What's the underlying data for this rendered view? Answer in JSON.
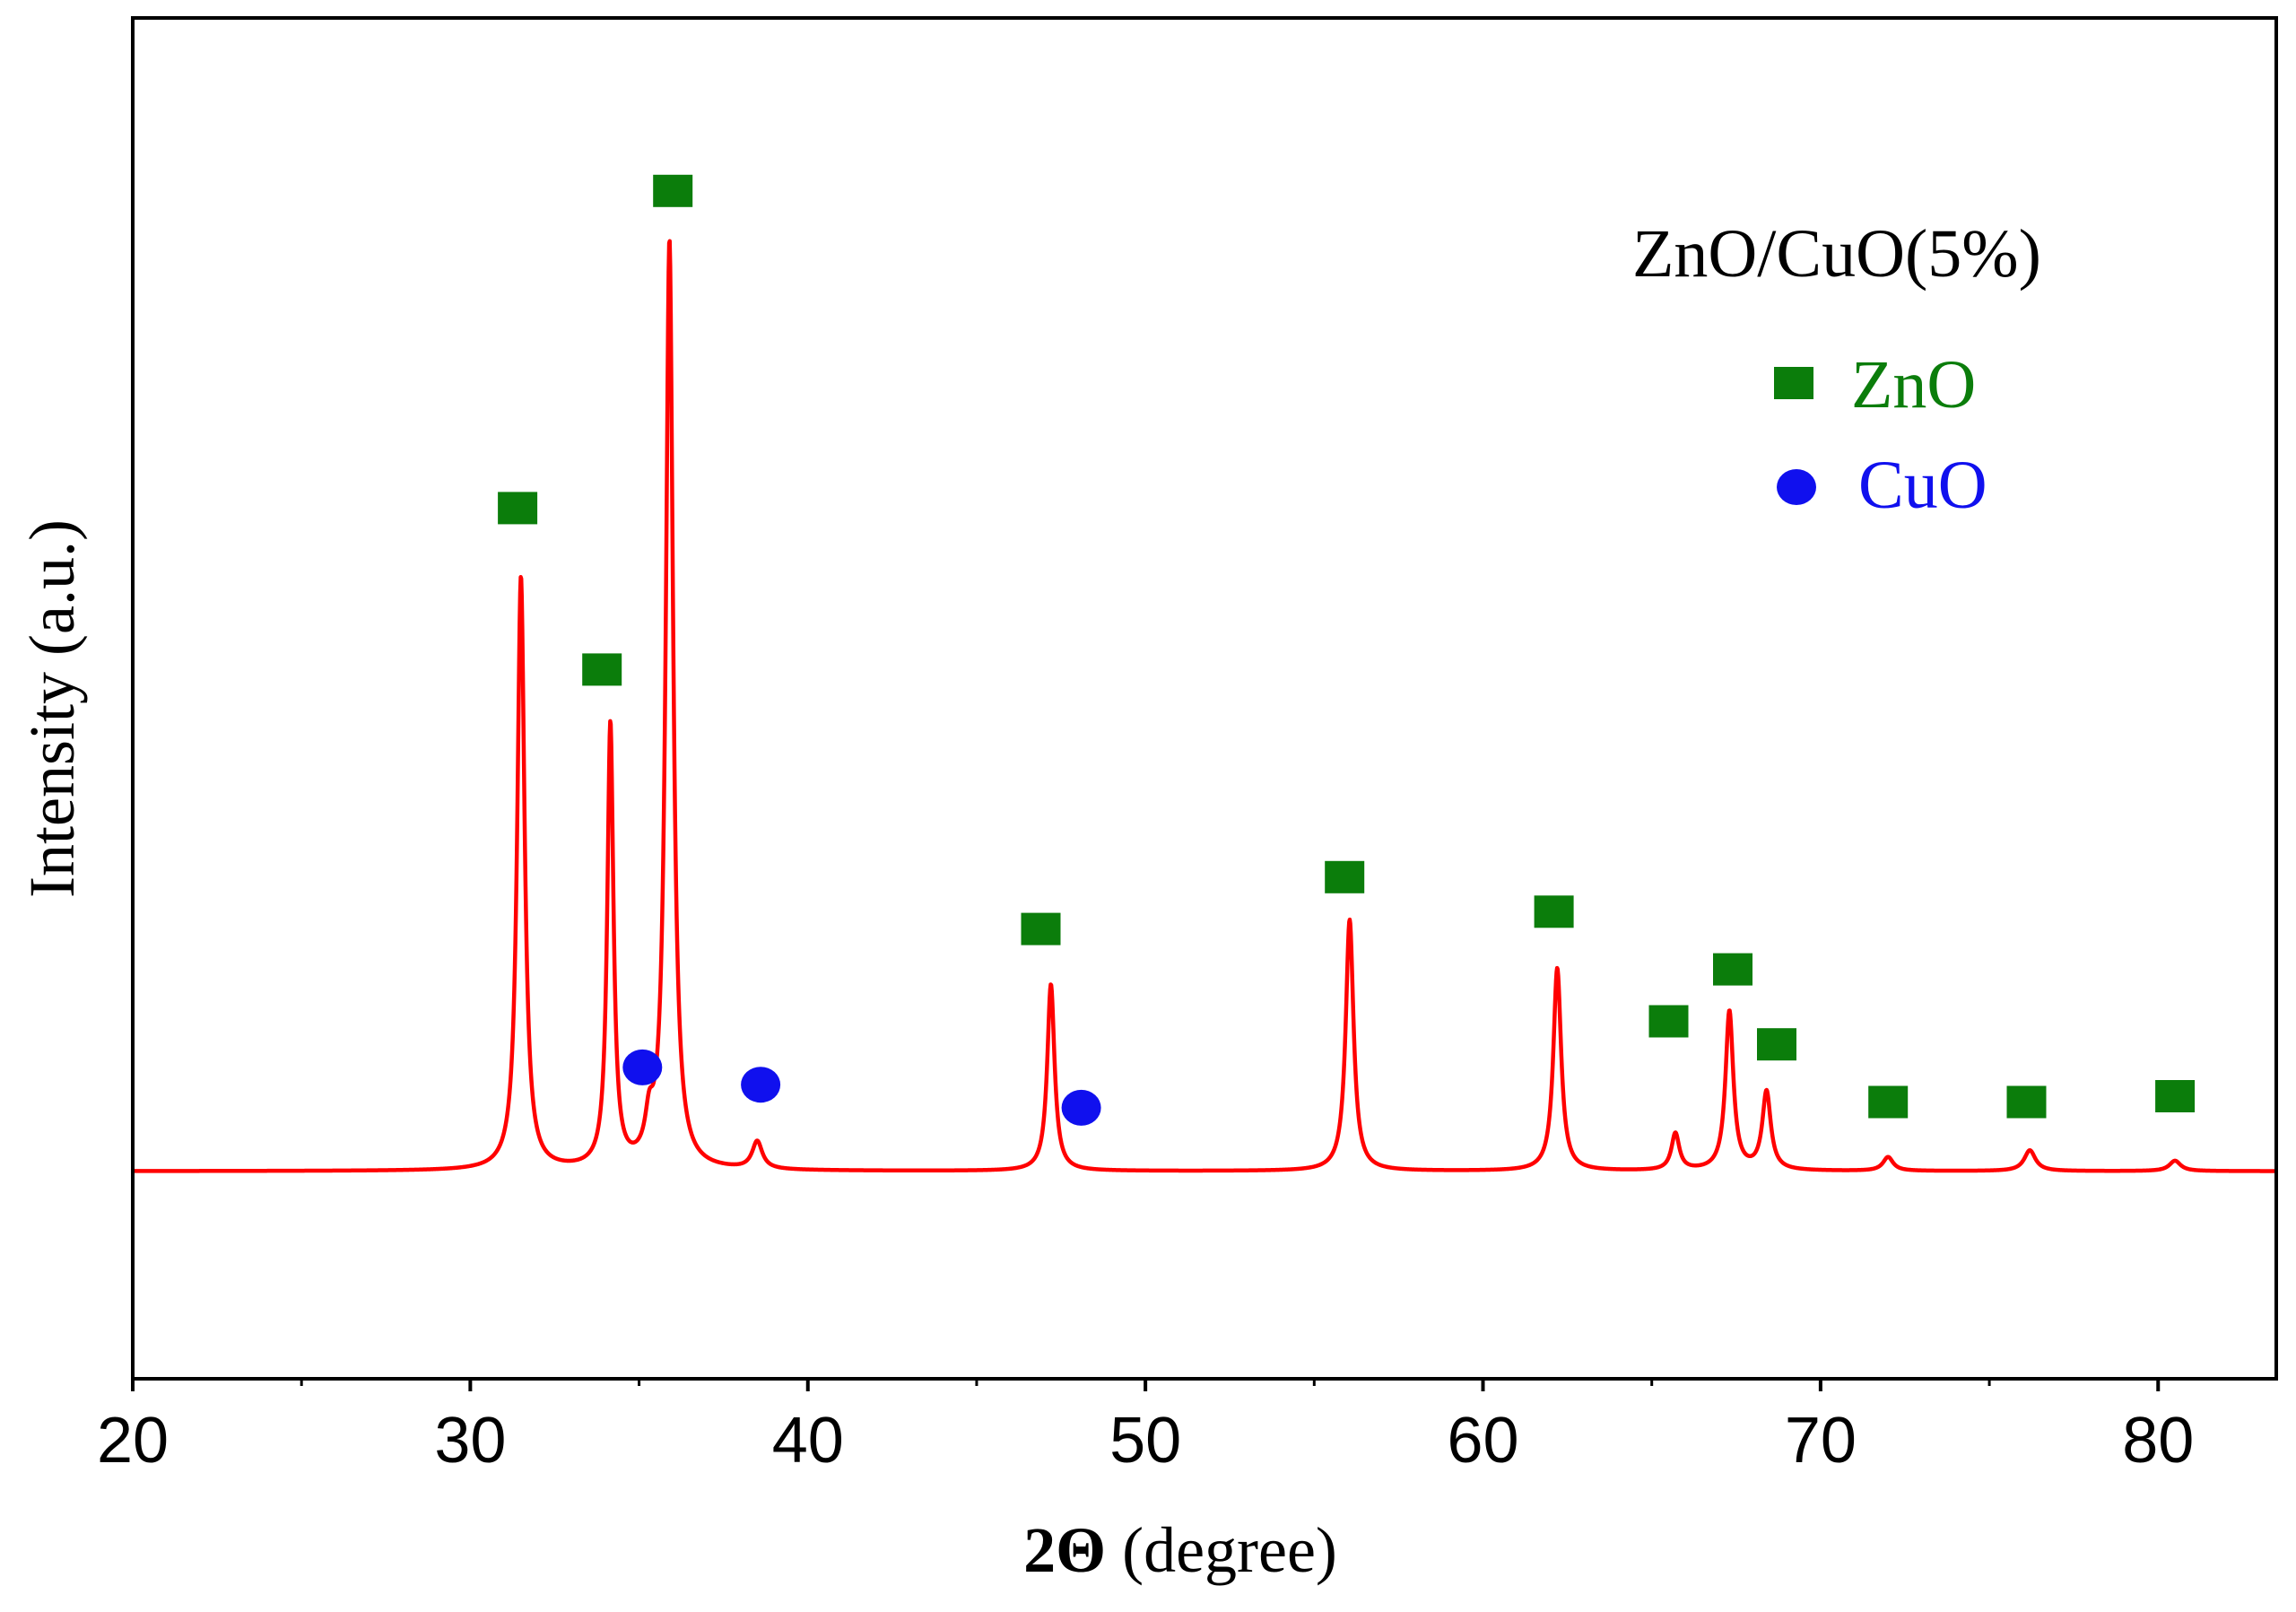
{
  "chart_data": {
    "type": "line",
    "title": "",
    "xlabel": "2Θ (degree)",
    "xlabel_bold_part": "2Θ",
    "xlabel_rest": " (degree)",
    "ylabel": "Intensity (a.u.)",
    "xlim": [
      20,
      83.5
    ],
    "ylim": [
      -18,
      100
    ],
    "xticks": [
      20,
      30,
      40,
      50,
      60,
      70,
      80
    ],
    "xtick_labels": [
      "20",
      "30",
      "40",
      "50",
      "60",
      "70",
      "80"
    ],
    "minor_xticks": [
      25,
      35,
      45,
      55,
      65,
      75
    ],
    "grid": false,
    "colors": {
      "trace": "#ff0000",
      "zno": "#0b7d0b",
      "cuo": "#1010ee",
      "axis": "#000000"
    },
    "legend": {
      "title": "ZnO/CuO(5%)",
      "position": "top-right",
      "entries": [
        {
          "label": "ZnO",
          "marker": "square",
          "color": "#0b7d0b"
        },
        {
          "label": "CuO",
          "marker": "circle",
          "color": "#1010ee"
        }
      ]
    },
    "series": [
      {
        "name": "ZnO/CuO(5%)",
        "color": "#ff0000",
        "baseline": 0,
        "peaks": [
          {
            "x": 31.5,
            "height": 51.5,
            "width": 0.13
          },
          {
            "x": 34.15,
            "height": 38.5,
            "width": 0.11
          },
          {
            "x": 35.3,
            "height": 3.0,
            "width": 0.14
          },
          {
            "x": 35.9,
            "height": 80.5,
            "width": 0.13
          },
          {
            "x": 38.5,
            "height": 2.4,
            "width": 0.18
          },
          {
            "x": 47.2,
            "height": 16.2,
            "width": 0.13
          },
          {
            "x": 56.05,
            "height": 21.8,
            "width": 0.14
          },
          {
            "x": 62.2,
            "height": 17.6,
            "width": 0.14
          },
          {
            "x": 65.7,
            "height": 3.2,
            "width": 0.14
          },
          {
            "x": 67.3,
            "height": 13.8,
            "width": 0.14
          },
          {
            "x": 68.4,
            "height": 6.8,
            "width": 0.15
          },
          {
            "x": 72.0,
            "height": 1.2,
            "width": 0.18
          },
          {
            "x": 76.2,
            "height": 1.8,
            "width": 0.2
          },
          {
            "x": 80.5,
            "height": 0.9,
            "width": 0.2
          }
        ]
      }
    ],
    "annotations": [
      {
        "phase": "ZnO",
        "marker": "square",
        "x": 31.4,
        "y": 57.5
      },
      {
        "phase": "ZnO",
        "marker": "square",
        "x": 33.9,
        "y": 43.5
      },
      {
        "phase": "ZnO",
        "marker": "square",
        "x": 36.0,
        "y": 85.0
      },
      {
        "phase": "ZnO",
        "marker": "square",
        "x": 46.9,
        "y": 21.0
      },
      {
        "phase": "ZnO",
        "marker": "square",
        "x": 55.9,
        "y": 25.5
      },
      {
        "phase": "ZnO",
        "marker": "square",
        "x": 62.1,
        "y": 22.5
      },
      {
        "phase": "ZnO",
        "marker": "square",
        "x": 65.5,
        "y": 13.0
      },
      {
        "phase": "ZnO",
        "marker": "square",
        "x": 67.4,
        "y": 17.5
      },
      {
        "phase": "ZnO",
        "marker": "square",
        "x": 68.7,
        "y": 11.0
      },
      {
        "phase": "ZnO",
        "marker": "square",
        "x": 72.0,
        "y": 6.0
      },
      {
        "phase": "ZnO",
        "marker": "square",
        "x": 76.1,
        "y": 6.0
      },
      {
        "phase": "ZnO",
        "marker": "square",
        "x": 80.5,
        "y": 6.5
      },
      {
        "phase": "CuO",
        "marker": "circle",
        "x": 35.1,
        "y": 9.0
      },
      {
        "phase": "CuO",
        "marker": "circle",
        "x": 38.6,
        "y": 7.5
      },
      {
        "phase": "CuO",
        "marker": "circle",
        "x": 48.1,
        "y": 5.5
      }
    ]
  }
}
